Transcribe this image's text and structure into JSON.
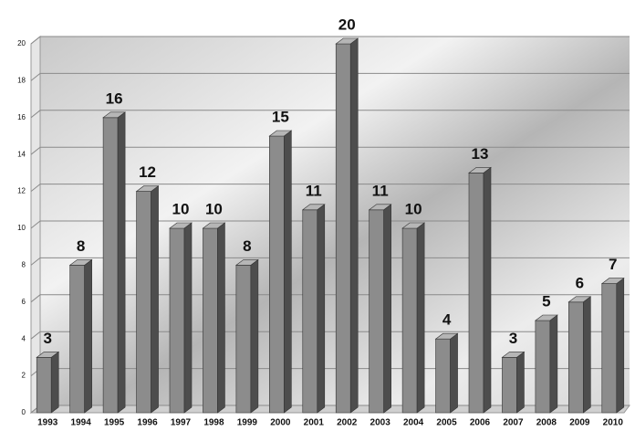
{
  "chart_data": {
    "type": "bar",
    "categories": [
      "1993",
      "1994",
      "1995",
      "1996",
      "1997",
      "1998",
      "1999",
      "2000",
      "2001",
      "2002",
      "2003",
      "2004",
      "2005",
      "2006",
      "2007",
      "2008",
      "2009",
      "2010"
    ],
    "values": [
      3,
      8,
      16,
      12,
      10,
      10,
      8,
      15,
      11,
      20,
      11,
      10,
      4,
      13,
      3,
      5,
      6,
      7
    ],
    "color": "#8c8c8c",
    "ylim": [
      0,
      20
    ],
    "yticks": [
      0,
      2,
      4,
      6,
      8,
      10,
      12,
      14,
      16,
      18,
      20
    ],
    "grid": true
  }
}
